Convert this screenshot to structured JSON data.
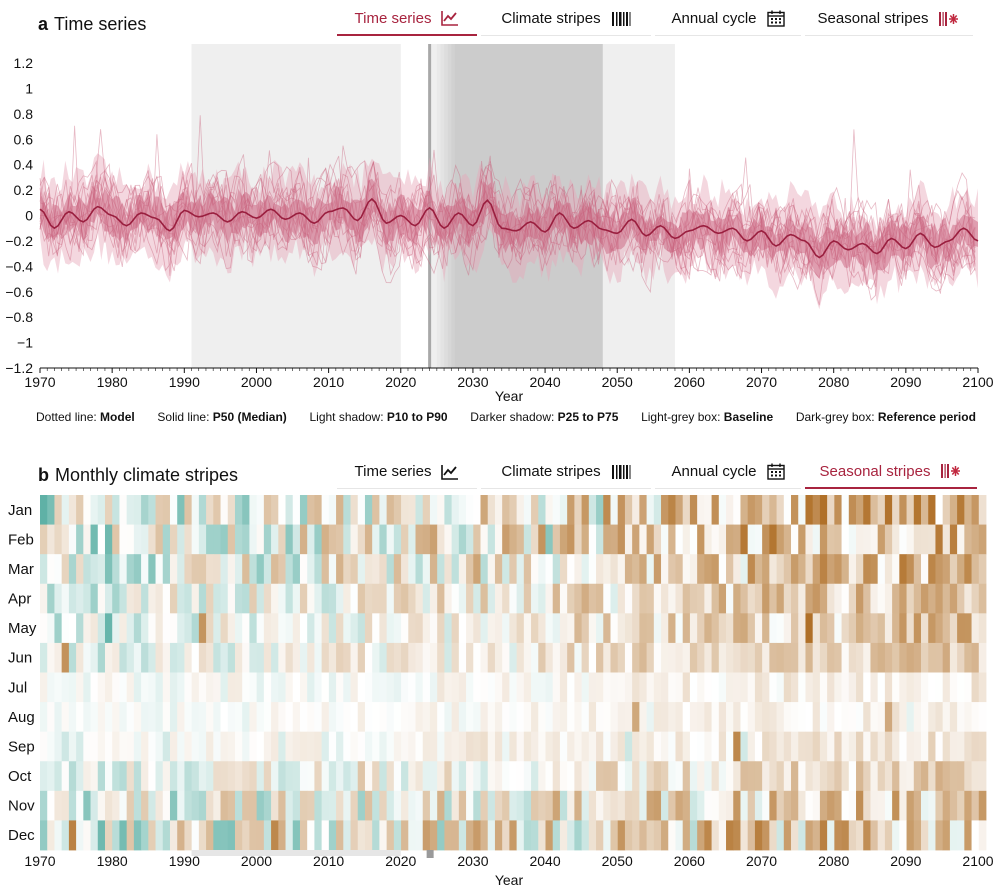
{
  "panel_a": {
    "letter": "a",
    "title": "Time series",
    "tabs": [
      {
        "label": "Time series",
        "icon": "line-chart-icon",
        "active": true
      },
      {
        "label": "Climate stripes",
        "icon": "stripes-icon",
        "active": false
      },
      {
        "label": "Annual cycle",
        "icon": "calendar-icon",
        "active": false
      },
      {
        "label": "Seasonal stripes",
        "icon": "seasonal-stripes-icon",
        "active": false
      }
    ]
  },
  "panel_b": {
    "letter": "b",
    "title": "Monthly climate stripes",
    "tabs": [
      {
        "label": "Time series",
        "icon": "line-chart-icon",
        "active": false
      },
      {
        "label": "Climate stripes",
        "icon": "stripes-icon",
        "active": false
      },
      {
        "label": "Annual cycle",
        "icon": "calendar-icon",
        "active": false
      },
      {
        "label": "Seasonal stripes",
        "icon": "seasonal-stripes-icon",
        "active": true
      }
    ]
  },
  "legend": [
    {
      "prefix": "Dotted line:",
      "value": "Model"
    },
    {
      "prefix": "Solid line:",
      "value": "P50 (Median)"
    },
    {
      "prefix": "Light shadow:",
      "value": "P10 to P90"
    },
    {
      "prefix": "Darker shadow:",
      "value": "P25 to P75"
    },
    {
      "prefix": "Light-grey box:",
      "value": "Baseline"
    },
    {
      "prefix": "Dark-grey box:",
      "value": "Reference period"
    }
  ],
  "colors": {
    "accent": "#a8243f",
    "median": "#9a1f3f",
    "band_light": "#e6a7b9",
    "band_dark": "#c9637f",
    "baseline_box": "#efefef",
    "reference_box": "#d4d4d4",
    "warm": "#b8782c",
    "cool": "#2a9a8a"
  },
  "chart_data": [
    {
      "type": "line",
      "title": "Time series",
      "xlabel": "Year",
      "ylabel": "",
      "xlim": [
        1970,
        2100
      ],
      "ylim": [
        -1.2,
        1.35
      ],
      "x_ticks": [
        1970,
        1980,
        1990,
        2000,
        2010,
        2020,
        2030,
        2040,
        2050,
        2060,
        2070,
        2080,
        2090,
        2100
      ],
      "y_ticks": [
        -1.2,
        -1,
        -0.8,
        -0.6,
        -0.4,
        -0.2,
        0,
        0.2,
        0.4,
        0.6,
        0.8,
        1,
        1.2
      ],
      "baseline_period": [
        1991,
        2020
      ],
      "reference_period": [
        2024,
        2058
      ],
      "reference_core": [
        2028,
        2048
      ],
      "current_year_marker": 2024,
      "median": {
        "x": [
          1970,
          1972,
          1974,
          1976,
          1978,
          1980,
          1982,
          1984,
          1986,
          1988,
          1990,
          1992,
          1994,
          1996,
          1998,
          2000,
          2002,
          2004,
          2006,
          2008,
          2010,
          2012,
          2014,
          2016,
          2018,
          2020,
          2022,
          2024,
          2026,
          2028,
          2030,
          2032,
          2034,
          2036,
          2038,
          2040,
          2042,
          2044,
          2046,
          2048,
          2050,
          2052,
          2054,
          2056,
          2058,
          2060,
          2062,
          2064,
          2066,
          2068,
          2070,
          2072,
          2074,
          2076,
          2078,
          2080,
          2082,
          2084,
          2086,
          2088,
          2090,
          2092,
          2094,
          2096,
          2098,
          2100
        ],
        "y": [
          0.05,
          -0.1,
          0.03,
          -0.05,
          0.07,
          0.0,
          -0.08,
          0.02,
          -0.02,
          -0.12,
          0.04,
          -0.01,
          0.02,
          -0.05,
          0.03,
          -0.02,
          0.05,
          -0.03,
          0.02,
          -0.06,
          0.03,
          0.06,
          -0.04,
          0.13,
          -0.06,
          0.0,
          -0.08,
          0.06,
          -0.1,
          0.02,
          -0.08,
          0.12,
          -0.1,
          -0.12,
          -0.05,
          -0.13,
          0.02,
          -0.1,
          -0.04,
          -0.11,
          -0.14,
          -0.03,
          -0.16,
          -0.08,
          -0.18,
          -0.12,
          -0.08,
          -0.14,
          -0.1,
          -0.2,
          -0.12,
          -0.24,
          -0.15,
          -0.2,
          -0.33,
          -0.2,
          -0.27,
          -0.22,
          -0.3,
          -0.18,
          -0.26,
          -0.14,
          -0.25,
          -0.2,
          -0.1,
          -0.2
        ]
      },
      "p25_p75_halfwidth": 0.12,
      "p10_p90_halfwidth": 0.3
    },
    {
      "type": "heatmap",
      "title": "Monthly climate stripes",
      "xlabel": "Year",
      "xlim": [
        1970,
        2100
      ],
      "x_ticks": [
        1970,
        1980,
        1990,
        2000,
        2010,
        2020,
        2030,
        2040,
        2050,
        2060,
        2070,
        2080,
        2090,
        2100
      ],
      "rows": [
        "Jan",
        "Feb",
        "Mar",
        "Apr",
        "May",
        "Jun",
        "Jul",
        "Aug",
        "Sep",
        "Oct",
        "Nov",
        "Dec"
      ],
      "color_scale": "teal (cool anomaly) to white to brown (warm anomaly)",
      "warming_trend_by_month": [
        0.6,
        0.6,
        0.55,
        0.45,
        0.45,
        0.4,
        0.15,
        0.12,
        0.2,
        0.3,
        0.4,
        0.45
      ],
      "anomaly_variability_by_month": [
        0.55,
        0.55,
        0.5,
        0.4,
        0.35,
        0.3,
        0.15,
        0.12,
        0.18,
        0.3,
        0.5,
        0.6
      ]
    }
  ]
}
